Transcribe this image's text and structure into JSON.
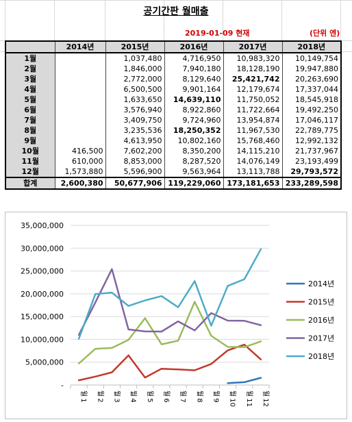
{
  "sheet": {
    "title": "공기간판 월매출",
    "date_note": "2019-01-09 현재",
    "unit_note": "(단위 엔)",
    "accent_red": "#d00000"
  },
  "table": {
    "headers": [
      "",
      "2014년",
      "2015년",
      "2016년",
      "2017년",
      "2018년"
    ],
    "rows": [
      {
        "label": "1월",
        "cells": [
          "",
          "1,037,480",
          "4,716,950",
          "10,983,320",
          "10,149,754"
        ],
        "bold": []
      },
      {
        "label": "2월",
        "cells": [
          "",
          "1,846,000",
          "7,940,180",
          "18,128,190",
          "19,947,880"
        ],
        "bold": []
      },
      {
        "label": "3월",
        "cells": [
          "",
          "2,772,000",
          "8,129,640",
          "25,421,742",
          "20,263,690"
        ],
        "bold": [
          3
        ]
      },
      {
        "label": "4월",
        "cells": [
          "",
          "6,500,500",
          "9,901,164",
          "12,179,674",
          "17,337,044"
        ],
        "bold": []
      },
      {
        "label": "5월",
        "cells": [
          "",
          "1,633,650",
          "14,639,110",
          "11,750,052",
          "18,545,918"
        ],
        "bold": [
          2
        ]
      },
      {
        "label": "6월",
        "cells": [
          "",
          "3,576,940",
          "8,922,860",
          "11,722,664",
          "19,492,250"
        ],
        "bold": []
      },
      {
        "label": "7월",
        "cells": [
          "",
          "3,409,750",
          "9,724,960",
          "13,954,874",
          "17,046,117"
        ],
        "bold": []
      },
      {
        "label": "8월",
        "cells": [
          "",
          "3,235,536",
          "18,250,352",
          "11,967,530",
          "22,789,775"
        ],
        "bold": [
          2
        ]
      },
      {
        "label": "9월",
        "cells": [
          "",
          "4,613,950",
          "10,802,160",
          "15,768,460",
          "12,992,132"
        ],
        "bold": []
      },
      {
        "label": "10월",
        "cells": [
          "416,500",
          "7,602,200",
          "8,350,200",
          "14,115,210",
          "21,737,967"
        ],
        "bold": []
      },
      {
        "label": "11월",
        "cells": [
          "610,000",
          "8,853,000",
          "8,287,520",
          "14,076,149",
          "23,193,499"
        ],
        "bold": []
      },
      {
        "label": "12월",
        "cells": [
          "1,573,880",
          "5,596,900",
          "9,563,964",
          "13,113,788",
          "29,793,572"
        ],
        "bold": [
          4
        ]
      }
    ],
    "total": {
      "label": "합계",
      "cells": [
        "2,600,380",
        "50,677,906",
        "119,229,060",
        "173,181,653",
        "233,289,598"
      ]
    }
  },
  "chart_data": {
    "type": "line",
    "categories": [
      "1월",
      "2월",
      "3월",
      "4월",
      "5월",
      "6월",
      "7월",
      "8월",
      "9월",
      "10월",
      "11월",
      "12월"
    ],
    "x_tick_labels": [
      "1",
      "2",
      "3",
      "4",
      "5",
      "6",
      "7",
      "8",
      "9",
      "10",
      "11",
      "12"
    ],
    "x_tick_suffix": "월",
    "ylim": [
      0,
      35000000
    ],
    "yticks": [
      0,
      5000000,
      10000000,
      15000000,
      20000000,
      25000000,
      30000000,
      35000000
    ],
    "ytick_labels": [
      "-",
      "5,000,000",
      "10,000,000",
      "15,000,000",
      "20,000,000",
      "25,000,000",
      "30,000,000",
      "35,000,000"
    ],
    "grid": true,
    "legend_position": "right",
    "series": [
      {
        "name": "2014년",
        "color": "#2e75b6",
        "values": [
          null,
          null,
          null,
          null,
          null,
          null,
          null,
          null,
          null,
          416500,
          610000,
          1573880
        ]
      },
      {
        "name": "2015년",
        "color": "#c0392b",
        "values": [
          1037480,
          1846000,
          2772000,
          6500500,
          1633650,
          3576940,
          3409750,
          3235536,
          4613950,
          7602200,
          8853000,
          5596900
        ]
      },
      {
        "name": "2016년",
        "color": "#9bbb59",
        "values": [
          4716950,
          7940180,
          8129640,
          9901164,
          14639110,
          8922860,
          9724960,
          18250352,
          10802160,
          8350200,
          8287520,
          9563964
        ]
      },
      {
        "name": "2017년",
        "color": "#8064a2",
        "values": [
          10983320,
          18128190,
          25421742,
          12179674,
          11750052,
          11722664,
          13954874,
          11967530,
          15768460,
          14115210,
          14076149,
          13113788
        ]
      },
      {
        "name": "2018년",
        "color": "#4bacc6",
        "values": [
          10149754,
          19947880,
          20263690,
          17337044,
          18545918,
          19492250,
          17046117,
          22789775,
          12992132,
          21737967,
          23193499,
          29793572
        ]
      }
    ]
  }
}
